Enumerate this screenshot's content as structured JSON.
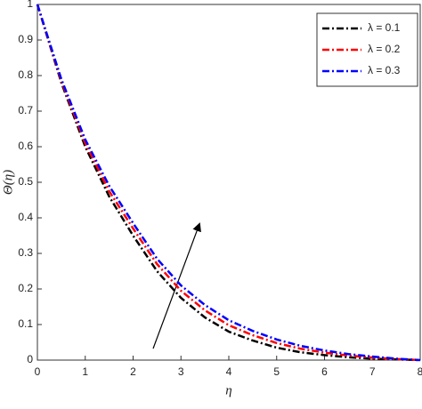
{
  "chart_data": {
    "type": "line",
    "xlabel": "η",
    "ylabel": "Θ(η)",
    "x": [
      0,
      0.5,
      1,
      1.5,
      2,
      2.5,
      3,
      3.5,
      4,
      4.5,
      5,
      5.5,
      6,
      6.5,
      7,
      7.5,
      8
    ],
    "series": [
      {
        "name": "λ = 0.1",
        "color": "#000000",
        "values": [
          1,
          0.78,
          0.6,
          0.46,
          0.35,
          0.25,
          0.175,
          0.12,
          0.08,
          0.055,
          0.035,
          0.022,
          0.014,
          0.008,
          0.004,
          0.002,
          0
        ]
      },
      {
        "name": "λ = 0.2",
        "color": "#ff0000",
        "values": [
          1,
          0.785,
          0.61,
          0.475,
          0.37,
          0.27,
          0.195,
          0.14,
          0.098,
          0.07,
          0.048,
          0.032,
          0.021,
          0.013,
          0.007,
          0.003,
          0
        ]
      },
      {
        "name": "λ = 0.3",
        "color": "#0000ff",
        "values": [
          1,
          0.79,
          0.62,
          0.49,
          0.385,
          0.285,
          0.21,
          0.155,
          0.112,
          0.082,
          0.058,
          0.04,
          0.027,
          0.017,
          0.01,
          0.004,
          0
        ]
      }
    ],
    "xlim": [
      0,
      8
    ],
    "xticks": [
      0,
      1,
      2,
      3,
      4,
      5,
      6,
      7,
      8
    ],
    "ylim": [
      0,
      1
    ],
    "yticks": [
      0,
      0.1,
      0.2,
      0.3,
      0.4,
      0.5,
      0.6,
      0.7,
      0.8,
      0.9,
      1
    ],
    "grid": false,
    "legend": "upper right"
  }
}
